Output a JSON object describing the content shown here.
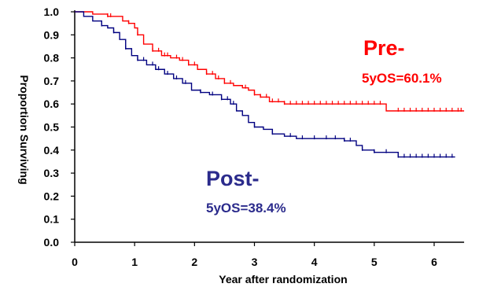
{
  "chart_data": {
    "type": "line",
    "xlabel": "Year after randomization",
    "ylabel": "Proportion Surviving",
    "xlim": [
      0,
      6.5
    ],
    "ylim": [
      0,
      1.0
    ],
    "x_ticks": [
      "0",
      "1",
      "2",
      "3",
      "4",
      "5",
      "6"
    ],
    "y_ticks": [
      "0.0",
      "0.1",
      "0.2",
      "0.3",
      "0.4",
      "0.5",
      "0.6",
      "0.7",
      "0.8",
      "0.9",
      "1.0"
    ],
    "grid": false,
    "annotations": {
      "pre_label": "Pre-",
      "pre_os": "5yOS=60.1%",
      "post_label": "Post-",
      "post_os": "5yOS=38.4%"
    },
    "series": [
      {
        "name": "Pre-",
        "color": "#ff0000",
        "x": [
          0,
          0.3,
          0.55,
          0.8,
          0.9,
          1.0,
          1.05,
          1.15,
          1.3,
          1.45,
          1.6,
          1.75,
          1.9,
          2.05,
          2.2,
          2.35,
          2.5,
          2.65,
          2.8,
          2.9,
          3.0,
          3.1,
          3.25,
          3.5,
          4.0,
          4.5,
          5.0,
          5.2,
          5.5,
          6.0,
          6.5
        ],
        "y": [
          1.0,
          0.99,
          0.98,
          0.96,
          0.95,
          0.93,
          0.9,
          0.86,
          0.83,
          0.81,
          0.8,
          0.79,
          0.77,
          0.75,
          0.73,
          0.71,
          0.69,
          0.68,
          0.67,
          0.66,
          0.64,
          0.63,
          0.61,
          0.6,
          0.6,
          0.6,
          0.6,
          0.57,
          0.57,
          0.57,
          0.57
        ],
        "censor_x": [
          0.55,
          0.6,
          0.9,
          1.05,
          1.3,
          1.4,
          1.5,
          1.55,
          1.7,
          1.8,
          1.9,
          2.0,
          2.2,
          2.3,
          2.4,
          2.5,
          2.6,
          2.85,
          3.0,
          3.1,
          3.2,
          3.3,
          3.4,
          3.5,
          3.6,
          3.7,
          3.8,
          3.9,
          4.0,
          4.1,
          4.2,
          4.3,
          4.4,
          4.5,
          4.6,
          4.7,
          4.8,
          4.9,
          5.0,
          5.1,
          5.4,
          5.5,
          5.6,
          5.7,
          5.8,
          5.9,
          6.0,
          6.1,
          6.2,
          6.3,
          6.4,
          6.45
        ]
      },
      {
        "name": "Post-",
        "color": "#000080",
        "x": [
          0,
          0.15,
          0.3,
          0.45,
          0.55,
          0.65,
          0.75,
          0.85,
          0.95,
          1.05,
          1.2,
          1.35,
          1.5,
          1.65,
          1.8,
          1.95,
          2.1,
          2.25,
          2.45,
          2.6,
          2.7,
          2.8,
          2.9,
          3.0,
          3.15,
          3.3,
          3.5,
          3.7,
          4.0,
          4.5,
          4.7,
          4.8,
          5.0,
          5.1,
          5.4,
          6.0,
          6.35
        ],
        "y": [
          1.0,
          0.98,
          0.96,
          0.94,
          0.93,
          0.91,
          0.88,
          0.84,
          0.81,
          0.79,
          0.77,
          0.75,
          0.73,
          0.71,
          0.69,
          0.66,
          0.65,
          0.64,
          0.62,
          0.6,
          0.57,
          0.55,
          0.52,
          0.5,
          0.49,
          0.47,
          0.46,
          0.45,
          0.45,
          0.44,
          0.42,
          0.4,
          0.39,
          0.39,
          0.37,
          0.37,
          0.37
        ],
        "censor_x": [
          0.45,
          0.65,
          0.85,
          1.05,
          1.15,
          1.3,
          1.4,
          1.55,
          1.7,
          1.85,
          2.1,
          2.3,
          2.45,
          2.55,
          2.65,
          3.0,
          3.3,
          3.6,
          3.8,
          4.0,
          4.2,
          4.35,
          4.5,
          4.6,
          4.8,
          5.0,
          5.2,
          5.4,
          5.5,
          5.6,
          5.7,
          5.8,
          5.9,
          6.0,
          6.1,
          6.2,
          6.3
        ]
      }
    ]
  }
}
